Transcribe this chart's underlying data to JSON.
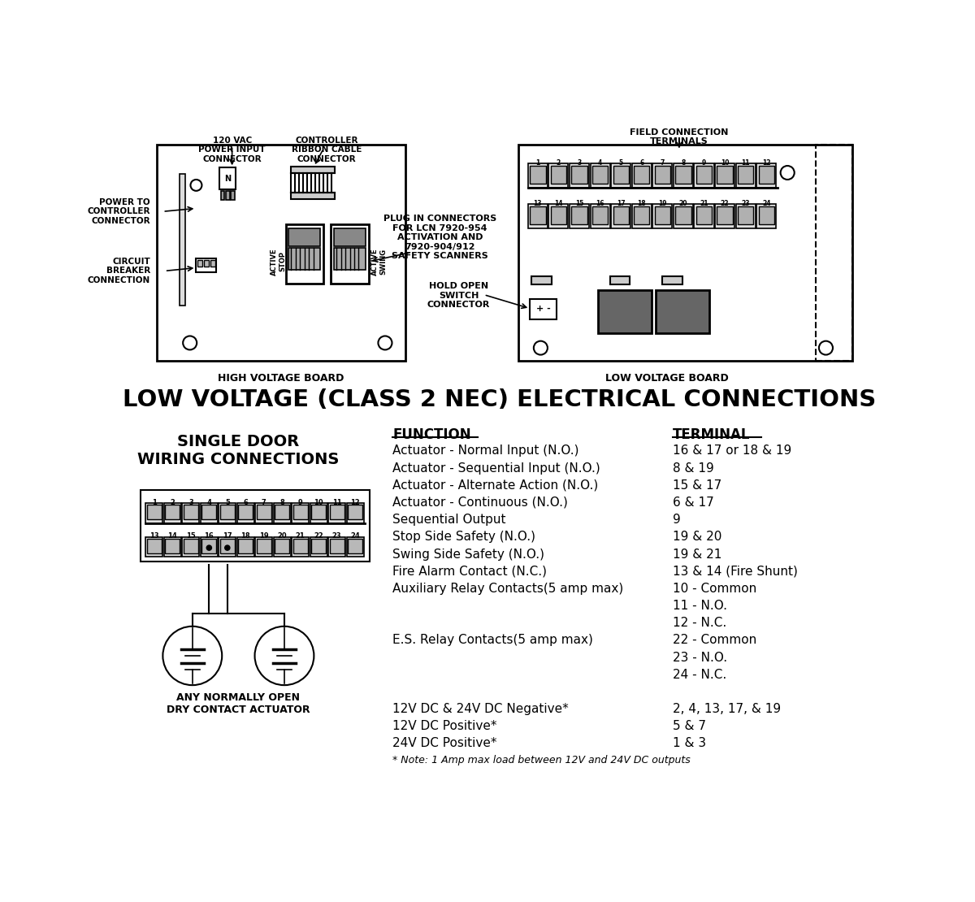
{
  "bg_color": "#ffffff",
  "title_bottom": "LOW VOLTAGE (CLASS 2 NEC) ELECTRICAL CONNECTIONS",
  "function_header": "FUNCTION",
  "terminal_header": "TERMINAL",
  "functions": [
    "Actuator - Normal Input (N.O.)",
    "Actuator - Sequential Input (N.O.)",
    "Actuator - Alternate Action (N.O.)",
    "Actuator - Continuous (N.O.)",
    "Sequential Output",
    "Stop Side Safety (N.O.)",
    "Swing Side Safety (N.O.)",
    "Fire Alarm Contact (N.C.)",
    "Auxiliary Relay Contacts(5 amp max)",
    "",
    "",
    "E.S. Relay Contacts(5 amp max)",
    "",
    "",
    "",
    "12V DC & 24V DC Negative*",
    "12V DC Positive*",
    "24V DC Positive*",
    "* Note: 1 Amp max load between 12V and 24V DC outputs"
  ],
  "terminals": [
    "16 & 17 or 18 & 19",
    "8 & 19",
    "15 & 17",
    "6 & 17",
    "9",
    "19 & 20",
    "19 & 21",
    "13 & 14 (Fire Shunt)",
    "10 - Common",
    "11 - N.O.",
    "12 - N.C.",
    "22 - Common",
    "23 - N.O.",
    "24 - N.C.",
    "",
    "2, 4, 13, 17, & 19",
    "5 & 7",
    "1 & 3",
    ""
  ],
  "label_power_input": "120 VAC\nPOWER INPUT\nCONNECTOR",
  "label_ribbon_cable": "CONTROLLER\nRIBBON CABLE\nCONNECTOR",
  "label_field_conn": "FIELD CONNECTION\nTERMINALS",
  "label_power_to_ctrl": "POWER TO\nCONTROLLER\nCONNECTOR",
  "label_circuit_breaker": "CIRCUIT\nBREAKER\nCONNECTION",
  "label_plug_in": "PLUG IN CONNECTORS\nFOR LCN 7920-954\nACTIVATION AND\n7920-904/912\nSAFETY SCANNERS",
  "label_hold_open": "HOLD OPEN\nSWITCH\nCONNECTOR",
  "label_high_voltage": "HIGH VOLTAGE BOARD",
  "label_low_voltage_board": "LOW VOLTAGE BOARD",
  "wiring_title": "SINGLE DOOR\nWIRING CONNECTIONS",
  "actuator_label": "ANY NORMALLY OPEN\nDRY CONTACT ACTUATOR",
  "terminal_row1": [
    "1",
    "2",
    "3",
    "4",
    "5",
    "6",
    "7",
    "8",
    "9",
    "10",
    "11",
    "12"
  ],
  "terminal_row2": [
    "13",
    "14",
    "15",
    "16",
    "17",
    "18",
    "19",
    "20",
    "21",
    "22",
    "23",
    "24"
  ]
}
